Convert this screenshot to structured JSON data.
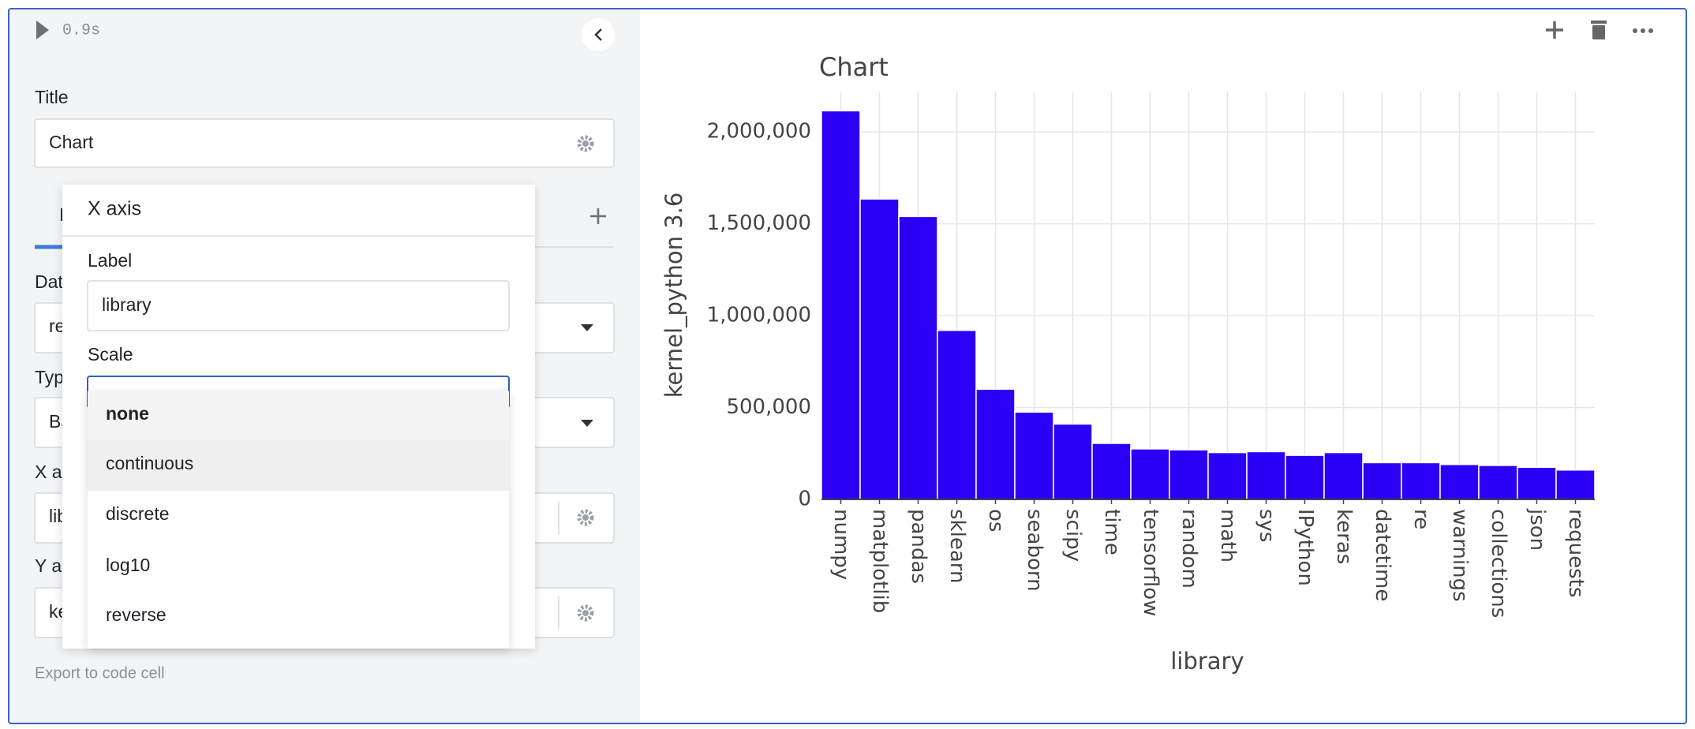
{
  "toolbar": {
    "run_time": "0.9s"
  },
  "panel": {
    "title_label": "Title",
    "title_value": "Chart",
    "tab_fragment": "I",
    "data_label": "Dat",
    "data_value": "re",
    "type_label": "Typ",
    "type_value": "Ba",
    "x_axis_label": "X a",
    "x_axis_value": "lib",
    "y_axis_label": "Y a",
    "y_axis_value": "ke",
    "export": "Export to code cell"
  },
  "popup": {
    "heading": "X axis",
    "label_label": "Label",
    "label_value": "library",
    "scale_label": "Scale",
    "options": [
      "none",
      "continuous",
      "discrete",
      "log10",
      "reverse"
    ]
  },
  "chart_data": {
    "type": "bar",
    "title": "Chart",
    "x_label": "library",
    "y_label": "kernel_python 3.6",
    "categories": [
      "numpy",
      "matplotlib",
      "pandas",
      "sklearn",
      "os",
      "seaborn",
      "scipy",
      "time",
      "tensorflow",
      "random",
      "math",
      "sys",
      "IPython",
      "keras",
      "datetime",
      "re",
      "warnings",
      "collections",
      "json",
      "requests"
    ],
    "values": [
      2115000,
      1635000,
      1540000,
      920000,
      600000,
      475000,
      410000,
      305000,
      275000,
      270000,
      255000,
      260000,
      240000,
      255000,
      200000,
      200000,
      190000,
      185000,
      175000,
      160000
    ],
    "color": "#2b00f5",
    "ylim": [
      0,
      2220000
    ],
    "yticks": [
      0,
      {
        "value": 500000,
        "label": "500,000"
      },
      {
        "value": 1000000,
        "label": "1,000,000"
      },
      {
        "value": 1500000,
        "label": "1,500,000"
      },
      {
        "value": 2000000,
        "label": "2,000,000"
      }
    ],
    "grid": true
  }
}
